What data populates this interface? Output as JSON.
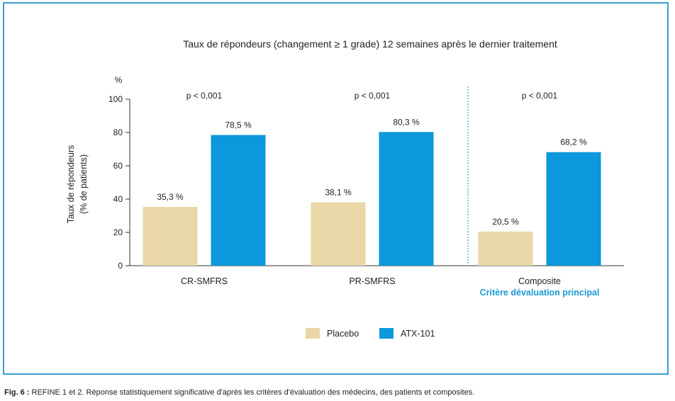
{
  "chart_data": {
    "type": "bar",
    "title": "Taux de répondeurs (changement ≥ 1 grade) 12 semaines après le dernier traitement",
    "ylabel_unit": "%",
    "ylabel_lines": [
      "Taux de répondeurs",
      "(% de patients)"
    ],
    "ylim": [
      0,
      100
    ],
    "yticks": [
      0,
      20,
      40,
      60,
      80,
      100
    ],
    "categories": [
      "CR-SMFRS",
      "PR-SMFRS",
      "Composite"
    ],
    "category_sublabel": {
      "index": 2,
      "text": "Critère dévaluation principal"
    },
    "p_values": [
      "p < 0,001",
      "p < 0,001",
      "p < 0,001"
    ],
    "series": [
      {
        "name": "Placebo",
        "color": "#ead7a8",
        "values": [
          35.3,
          38.1,
          20.5
        ],
        "labels": [
          "35,3 %",
          "38,1 %",
          "20,5 %"
        ]
      },
      {
        "name": "ATX-101",
        "color": "#0d97dc",
        "values": [
          78.5,
          80.3,
          68.2
        ],
        "labels": [
          "78,5 %",
          "80,3 %",
          "68,2 %"
        ]
      }
    ],
    "legend_position": "bottom-center",
    "grid": false,
    "separator": "dotted line before Composite",
    "colors": {
      "frame": "#3a9fd0",
      "sublabel": "#1a9ad6",
      "separator": "#3aa6c8"
    }
  },
  "caption": {
    "prefix": "Fig. 6 :",
    "text": " REFINE 1 et 2. Réponse statistiquement significative d'après les critères d'évaluation des médecins, des patients et composites."
  }
}
